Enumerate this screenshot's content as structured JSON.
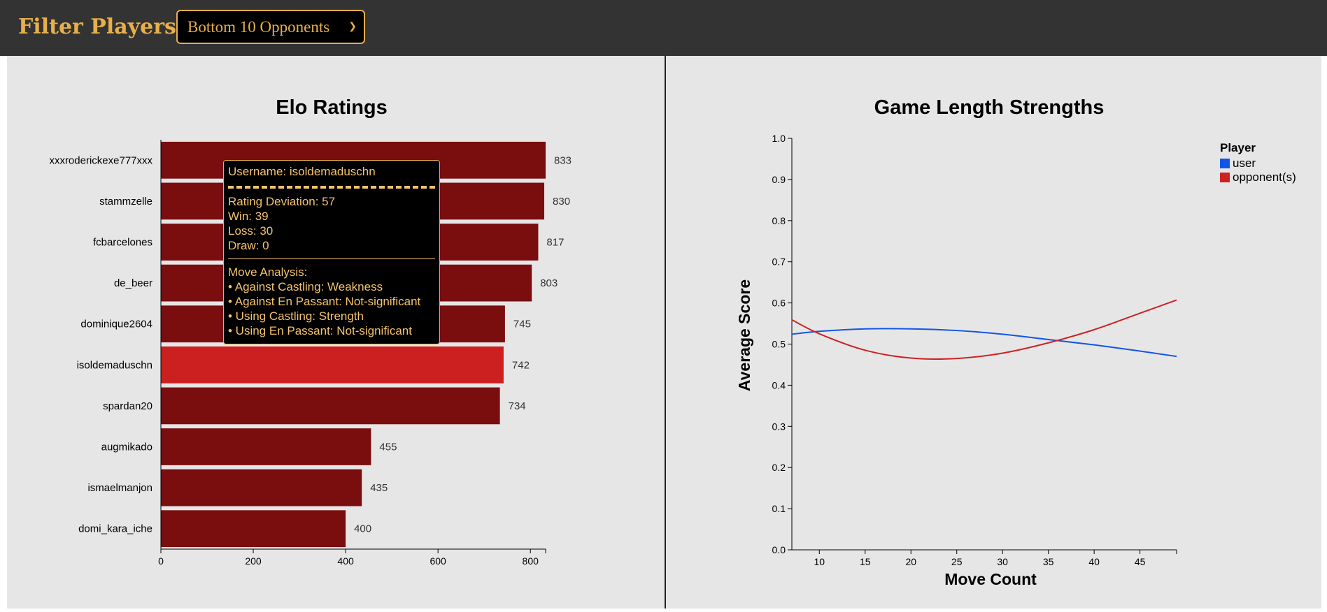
{
  "header": {
    "filter_label": "Filter Players:",
    "filter_selected": "Bottom 10 Opponents",
    "chevron_icon": "chevron-down-icon",
    "colors": {
      "bar": "#333333",
      "accent": "#e8b04a"
    }
  },
  "elo_chart": {
    "chart_data": {
      "type": "bar",
      "orientation": "horizontal",
      "title": "Elo Ratings",
      "categories": [
        "xxxroderickexe777xxx",
        "stammzelle",
        "fcbarcelones",
        "de_beer",
        "dominique2604",
        "isoldemaduschn",
        "spardan20",
        "augmikado",
        "ismaelmanjon",
        "domi_kara_iche"
      ],
      "values": [
        833,
        830,
        817,
        803,
        745,
        742,
        734,
        455,
        435,
        400
      ],
      "value_labels": [
        "833",
        "830",
        "817",
        "803",
        "745",
        "742",
        "734",
        "455",
        "435",
        "400"
      ],
      "xlim": [
        0,
        833
      ],
      "xticks": [
        "0",
        "200",
        "400",
        "600",
        "800"
      ],
      "highlighted": "isoldemaduschn",
      "colors": {
        "bar": "#7a0e0e",
        "highlight": "#cc1f1f"
      }
    }
  },
  "tooltip": {
    "username": "Username: isoldemaduschn",
    "rating_deviation": "Rating Deviation: 57",
    "win": "Win: 39",
    "loss": "Loss: 30",
    "draw": "Draw: 0",
    "move_analysis_title": "Move Analysis:",
    "items": [
      "• Against Castling: Weakness",
      "• Against En Passant: Not-significant",
      "• Using Castling: Strength",
      "• Using En Passant: Not-significant"
    ]
  },
  "length_chart": {
    "chart_data": {
      "type": "line",
      "title": "Game Length Strengths",
      "xlabel": "Move Count",
      "ylabel": "Average Score",
      "xlim": [
        7,
        49
      ],
      "ylim": [
        0,
        1
      ],
      "xticks": [
        "10",
        "15",
        "20",
        "25",
        "30",
        "35",
        "40",
        "45"
      ],
      "yticks": [
        "0.0",
        "0.1",
        "0.2",
        "0.3",
        "0.4",
        "0.5",
        "0.6",
        "0.7",
        "0.8",
        "0.9",
        "1.0"
      ],
      "legend_title": "Player",
      "legend_position": "top-right",
      "series": [
        {
          "name": "user",
          "color": "#1155e8",
          "x": [
            7,
            10,
            15,
            20,
            25,
            30,
            35,
            40,
            45,
            49
          ],
          "y": [
            0.524,
            0.531,
            0.537,
            0.537,
            0.533,
            0.524,
            0.511,
            0.498,
            0.483,
            0.47
          ]
        },
        {
          "name": "opponent(s)",
          "color": "#cc2222",
          "x": [
            7,
            10,
            15,
            20,
            25,
            30,
            35,
            40,
            45,
            49
          ],
          "y": [
            0.559,
            0.525,
            0.485,
            0.466,
            0.465,
            0.478,
            0.503,
            0.535,
            0.575,
            0.607
          ]
        }
      ]
    }
  }
}
